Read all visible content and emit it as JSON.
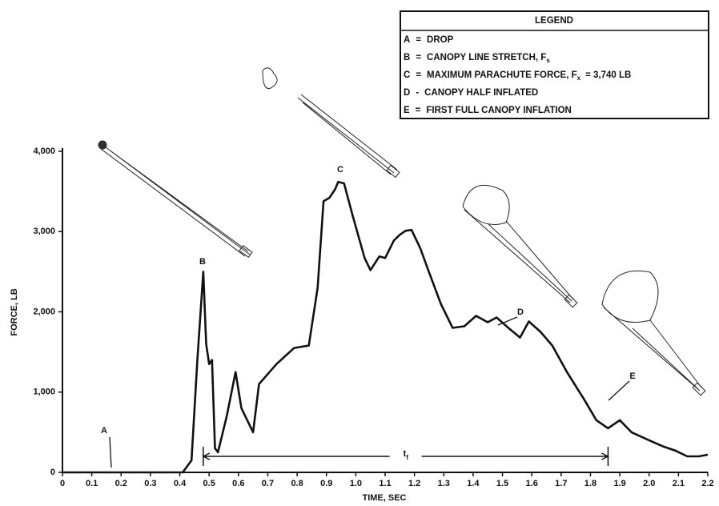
{
  "chart_data": {
    "type": "line",
    "x_label": "TIME, SEC",
    "y_label": "FORCE, LB",
    "x": [
      0,
      0.41,
      0.44,
      0.46,
      0.48,
      0.49,
      0.5,
      0.51,
      0.52,
      0.53,
      0.56,
      0.59,
      0.61,
      0.65,
      0.67,
      0.73,
      0.76,
      0.79,
      0.84,
      0.87,
      0.89,
      0.91,
      0.93,
      0.94,
      0.96,
      0.99,
      1.03,
      1.05,
      1.08,
      1.1,
      1.13,
      1.15,
      1.17,
      1.19,
      1.22,
      1.25,
      1.29,
      1.33,
      1.37,
      1.41,
      1.45,
      1.48,
      1.52,
      1.56,
      1.59,
      1.63,
      1.67,
      1.72,
      1.78,
      1.82,
      1.86,
      1.9,
      1.94,
      2.0,
      2.05,
      2.09,
      2.13,
      2.17,
      2.2
    ],
    "values": [
      0,
      0,
      150,
      1400,
      2500,
      1600,
      1350,
      1400,
      300,
      250,
      700,
      1250,
      800,
      500,
      1100,
      1350,
      1450,
      1550,
      1580,
      2300,
      3380,
      3420,
      3530,
      3620,
      3600,
      3190,
      2670,
      2520,
      2690,
      2670,
      2890,
      2960,
      3010,
      3020,
      2790,
      2490,
      2100,
      1800,
      1820,
      1950,
      1870,
      1930,
      1800,
      1680,
      1880,
      1750,
      1580,
      1250,
      900,
      650,
      550,
      650,
      500,
      400,
      320,
      270,
      200,
      200,
      220
    ],
    "color": "#111111",
    "xlim": [
      0,
      2.2
    ],
    "xticks": [
      0,
      0.1,
      0.2,
      0.3,
      0.4,
      0.5,
      0.6,
      0.7,
      0.8,
      0.9,
      {
        "value": 1,
        "label": "1.0"
      },
      1.1,
      1.2,
      1.3,
      1.4,
      1.5,
      1.6,
      1.7,
      1.8,
      1.9,
      {
        "value": 2,
        "label": "2.0"
      },
      2.1,
      2.2
    ],
    "ylim": [
      0,
      4000
    ],
    "yticks": [
      0,
      {
        "value": 1000,
        "label": "1,000"
      },
      {
        "value": 2000,
        "label": "2,000"
      },
      {
        "value": 3000,
        "label": "3,000"
      },
      {
        "value": 4000,
        "label": "4,000"
      }
    ],
    "grid": false,
    "annotations": [
      "A",
      "B",
      "C",
      "D",
      "E"
    ],
    "interval": [
      0.48,
      1.86
    ],
    "interval_label": "t",
    "interval_sub": "f",
    "legend_title": "LEGEND",
    "legend": [
      {
        "key": "A",
        "sep": "=",
        "text": "DROP"
      },
      {
        "key": "B",
        "sep": "=",
        "text": "CANOPY LINE STRETCH, F",
        "sub": "s"
      },
      {
        "key": "C",
        "sep": "=",
        "text": "MAXIMUM PARACHUTE FORCE, F",
        "sub": "x",
        "tail": "= 3,740 LB"
      },
      {
        "key": "D",
        "sep": "-",
        "text": "CANOPY HALF INFLATED"
      },
      {
        "key": "E",
        "sep": "=",
        "text": "FIRST FULL CANOPY INFLATION"
      }
    ]
  }
}
